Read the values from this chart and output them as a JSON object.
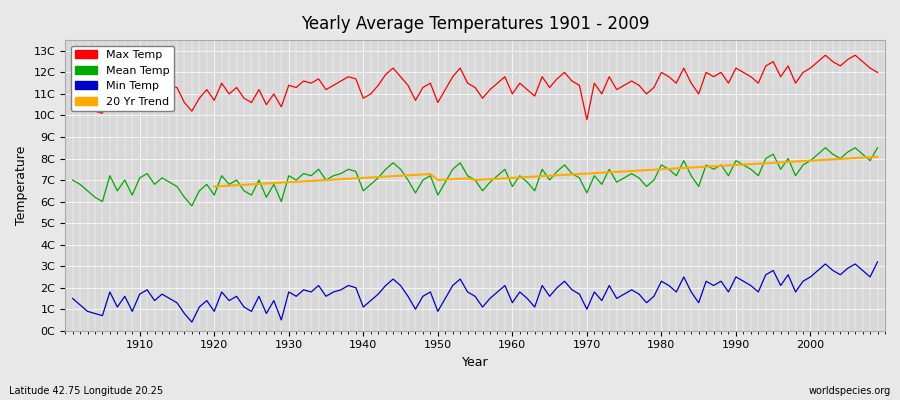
{
  "title": "Yearly Average Temperatures 1901 - 2009",
  "xlabel": "Year",
  "ylabel": "Temperature",
  "bottom_left": "Latitude 42.75 Longitude 20.25",
  "bottom_right": "worldspecies.org",
  "years": [
    1901,
    1902,
    1903,
    1904,
    1905,
    1906,
    1907,
    1908,
    1909,
    1910,
    1911,
    1912,
    1913,
    1914,
    1915,
    1916,
    1917,
    1918,
    1919,
    1920,
    1921,
    1922,
    1923,
    1924,
    1925,
    1926,
    1927,
    1928,
    1929,
    1930,
    1931,
    1932,
    1933,
    1934,
    1935,
    1936,
    1937,
    1938,
    1939,
    1940,
    1941,
    1942,
    1943,
    1944,
    1945,
    1946,
    1947,
    1948,
    1949,
    1950,
    1951,
    1952,
    1953,
    1954,
    1955,
    1956,
    1957,
    1958,
    1959,
    1960,
    1961,
    1962,
    1963,
    1964,
    1965,
    1966,
    1967,
    1968,
    1969,
    1970,
    1971,
    1972,
    1973,
    1974,
    1975,
    1976,
    1977,
    1978,
    1979,
    1980,
    1981,
    1982,
    1983,
    1984,
    1985,
    1986,
    1987,
    1988,
    1989,
    1990,
    1991,
    1992,
    1993,
    1994,
    1995,
    1996,
    1997,
    1998,
    1999,
    2000,
    2001,
    2002,
    2003,
    2004,
    2005,
    2006,
    2007,
    2008,
    2009
  ],
  "max_temp": [
    11.0,
    10.5,
    10.3,
    10.2,
    10.1,
    11.5,
    10.8,
    11.2,
    10.7,
    11.4,
    11.8,
    11.5,
    11.9,
    11.4,
    11.3,
    10.6,
    10.2,
    10.8,
    11.2,
    10.7,
    11.5,
    11.0,
    11.3,
    10.8,
    10.6,
    11.2,
    10.5,
    11.0,
    10.4,
    11.4,
    11.3,
    11.6,
    11.5,
    11.7,
    11.2,
    11.4,
    11.6,
    11.8,
    11.7,
    10.8,
    11.0,
    11.4,
    11.9,
    12.2,
    11.8,
    11.4,
    10.7,
    11.3,
    11.5,
    10.6,
    11.2,
    11.8,
    12.2,
    11.5,
    11.3,
    10.8,
    11.2,
    11.5,
    11.8,
    11.0,
    11.5,
    11.2,
    10.9,
    11.8,
    11.3,
    11.7,
    12.0,
    11.6,
    11.4,
    9.8,
    11.5,
    11.0,
    11.8,
    11.2,
    11.4,
    11.6,
    11.4,
    11.0,
    11.3,
    12.0,
    11.8,
    11.5,
    12.2,
    11.5,
    11.0,
    12.0,
    11.8,
    12.0,
    11.5,
    12.2,
    12.0,
    11.8,
    11.5,
    12.3,
    12.5,
    11.8,
    12.3,
    11.5,
    12.0,
    12.2,
    12.5,
    12.8,
    12.5,
    12.3,
    12.6,
    12.8,
    12.5,
    12.2,
    12.0
  ],
  "mean_temp": [
    7.0,
    6.8,
    6.5,
    6.2,
    6.0,
    7.2,
    6.5,
    7.0,
    6.3,
    7.1,
    7.3,
    6.8,
    7.1,
    6.9,
    6.7,
    6.2,
    5.8,
    6.5,
    6.8,
    6.3,
    7.2,
    6.8,
    7.0,
    6.5,
    6.3,
    7.0,
    6.2,
    6.8,
    6.0,
    7.2,
    7.0,
    7.3,
    7.2,
    7.5,
    7.0,
    7.2,
    7.3,
    7.5,
    7.4,
    6.5,
    6.8,
    7.1,
    7.5,
    7.8,
    7.5,
    7.0,
    6.4,
    7.0,
    7.2,
    6.3,
    6.9,
    7.5,
    7.8,
    7.2,
    7.0,
    6.5,
    6.9,
    7.2,
    7.5,
    6.7,
    7.2,
    6.9,
    6.5,
    7.5,
    7.0,
    7.4,
    7.7,
    7.3,
    7.1,
    6.4,
    7.2,
    6.8,
    7.5,
    6.9,
    7.1,
    7.3,
    7.1,
    6.7,
    7.0,
    7.7,
    7.5,
    7.2,
    7.9,
    7.2,
    6.7,
    7.7,
    7.5,
    7.7,
    7.2,
    7.9,
    7.7,
    7.5,
    7.2,
    8.0,
    8.2,
    7.5,
    8.0,
    7.2,
    7.7,
    7.9,
    8.2,
    8.5,
    8.2,
    8.0,
    8.3,
    8.5,
    8.2,
    7.9,
    8.5
  ],
  "min_temp": [
    1.5,
    1.2,
    0.9,
    0.8,
    0.7,
    1.8,
    1.1,
    1.6,
    0.9,
    1.7,
    1.9,
    1.4,
    1.7,
    1.5,
    1.3,
    0.8,
    0.4,
    1.1,
    1.4,
    0.9,
    1.8,
    1.4,
    1.6,
    1.1,
    0.9,
    1.6,
    0.8,
    1.4,
    0.5,
    1.8,
    1.6,
    1.9,
    1.8,
    2.1,
    1.6,
    1.8,
    1.9,
    2.1,
    2.0,
    1.1,
    1.4,
    1.7,
    2.1,
    2.4,
    2.1,
    1.6,
    1.0,
    1.6,
    1.8,
    0.9,
    1.5,
    2.1,
    2.4,
    1.8,
    1.6,
    1.1,
    1.5,
    1.8,
    2.1,
    1.3,
    1.8,
    1.5,
    1.1,
    2.1,
    1.6,
    2.0,
    2.3,
    1.9,
    1.7,
    1.0,
    1.8,
    1.4,
    2.1,
    1.5,
    1.7,
    1.9,
    1.7,
    1.3,
    1.6,
    2.3,
    2.1,
    1.8,
    2.5,
    1.8,
    1.3,
    2.3,
    2.1,
    2.3,
    1.8,
    2.5,
    2.3,
    2.1,
    1.8,
    2.6,
    2.8,
    2.1,
    2.6,
    1.8,
    2.3,
    2.5,
    2.8,
    3.1,
    2.8,
    2.6,
    2.9,
    3.1,
    2.8,
    2.5,
    3.2
  ],
  "trend_20yr_x": [
    1920,
    1921,
    1922,
    1923,
    1924,
    1925,
    1926,
    1927,
    1928,
    1929,
    1930,
    1931,
    1932,
    1933,
    1934,
    1935,
    1936,
    1937,
    1938,
    1939,
    1940,
    1941,
    1942,
    1943,
    1944,
    1945,
    1946,
    1947,
    1948,
    1949,
    1950,
    1951,
    1952,
    1953,
    1954,
    1955,
    1956,
    1957,
    1958,
    1959,
    1960,
    1961,
    1962,
    1963,
    1964,
    1965,
    1966,
    1967,
    1968,
    1969,
    1970,
    1971,
    1972,
    1973,
    1974,
    1975,
    1976,
    1977,
    1978,
    1979,
    1980,
    1981,
    1982,
    1983,
    1984,
    1985,
    1986,
    1987,
    1988,
    1989,
    1990,
    1991,
    1992,
    1993,
    1994,
    1995,
    1996,
    1997,
    1998,
    1999,
    2000,
    2001,
    2002,
    2003,
    2004,
    2005,
    2006,
    2007,
    2008,
    2009
  ],
  "trend_20yr_y": [
    6.7,
    6.72,
    6.74,
    6.76,
    6.78,
    6.8,
    6.82,
    6.84,
    6.86,
    6.88,
    6.9,
    6.92,
    6.94,
    6.96,
    6.98,
    7.0,
    7.02,
    7.04,
    7.06,
    7.08,
    7.1,
    7.12,
    7.14,
    7.16,
    7.18,
    7.2,
    7.22,
    7.24,
    7.26,
    7.28,
    7.0,
    7.02,
    7.04,
    7.06,
    7.08,
    7.0,
    7.02,
    7.04,
    7.06,
    7.08,
    7.1,
    7.12,
    7.14,
    7.16,
    7.18,
    7.2,
    7.22,
    7.24,
    7.26,
    7.28,
    7.3,
    7.32,
    7.34,
    7.36,
    7.38,
    7.4,
    7.42,
    7.44,
    7.46,
    7.48,
    7.5,
    7.52,
    7.54,
    7.56,
    7.58,
    7.6,
    7.62,
    7.64,
    7.66,
    7.68,
    7.7,
    7.72,
    7.74,
    7.76,
    7.78,
    7.8,
    7.82,
    7.84,
    7.86,
    7.88,
    7.9,
    7.92,
    7.94,
    7.96,
    7.98,
    8.0,
    8.02,
    8.04,
    8.06,
    8.08
  ],
  "yticks": [
    0,
    1,
    2,
    3,
    4,
    5,
    6,
    7,
    8,
    9,
    10,
    11,
    12,
    13
  ],
  "ytick_labels": [
    "0C",
    "1C",
    "2C",
    "3C",
    "4C",
    "5C",
    "6C",
    "7C",
    "8C",
    "9C",
    "10C",
    "11C",
    "12C",
    "13C"
  ],
  "xlim": [
    1900,
    2010
  ],
  "ylim": [
    0,
    13.5
  ],
  "max_color": "#ff0000",
  "mean_color": "#00aa00",
  "min_color": "#0000cc",
  "trend_color": "#ffaa00",
  "background_color": "#e8e8e8",
  "plot_bg_color": "#d8d8d8",
  "grid_color": "#ffffff",
  "legend_entries": [
    "Max Temp",
    "Mean Temp",
    "Min Temp",
    "20 Yr Trend"
  ],
  "legend_colors": [
    "#ff0000",
    "#00aa00",
    "#0000cc",
    "#ffaa00"
  ]
}
